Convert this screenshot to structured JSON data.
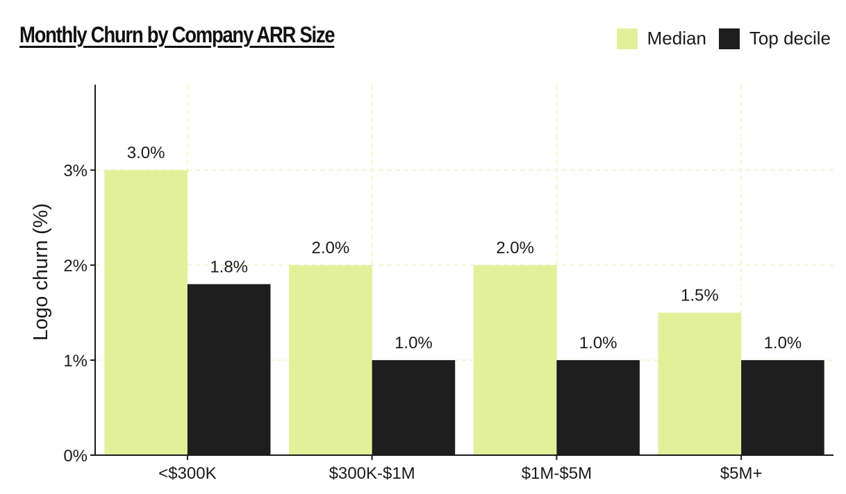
{
  "chart_data": {
    "type": "bar",
    "title": "Monthly Churn by Company ARR Size",
    "xlabel": "",
    "ylabel": "Logo churn (%)",
    "categories": [
      "<$300K",
      "$300K-$1M",
      "$1M-$5M",
      "$5M+"
    ],
    "series": [
      {
        "name": "Median",
        "color": "#e3f09a",
        "values": [
          3.0,
          2.0,
          2.0,
          1.5
        ],
        "labels": [
          "3.0%",
          "2.0%",
          "2.0%",
          "1.5%"
        ]
      },
      {
        "name": "Top decile",
        "color": "#1e1e1e",
        "values": [
          1.8,
          1.0,
          1.0,
          1.0
        ],
        "labels": [
          "1.8%",
          "1.0%",
          "1.0%",
          "1.0%"
        ]
      }
    ],
    "ylim": [
      0,
      3.9
    ],
    "yticks": [
      0,
      1,
      2,
      3
    ],
    "ytick_labels": [
      "0%",
      "1%",
      "2%",
      "3%"
    ],
    "grid": true,
    "legend_position": "top-right"
  }
}
